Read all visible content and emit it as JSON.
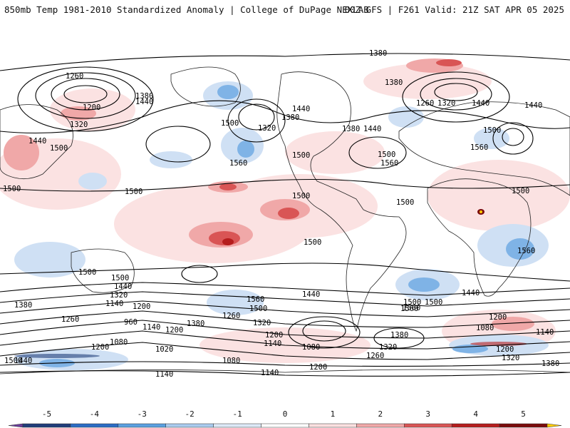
{
  "header": {
    "left": "850mb Temp 1981-2010 Standardized Anomaly | College of DuPage NEXLAB",
    "right": "00Z GFS | F261 Valid: 21Z SAT APR 05 2025"
  },
  "contour_labels": [
    "1380",
    "1260",
    "1200",
    "1320",
    "1380",
    "1440",
    "1440",
    "1500",
    "1500",
    "1500",
    "1500",
    "1560",
    "1380",
    "1320",
    "1440",
    "1500",
    "1380",
    "1440",
    "1500",
    "1560",
    "1500",
    "1560",
    "1500",
    "1500",
    "1380",
    "1260",
    "1320",
    "1440",
    "1440",
    "1500",
    "1560",
    "1500",
    "1500",
    "1500",
    "1500",
    "1560",
    "1440",
    "1500",
    "1440",
    "1320",
    "1140",
    "1200",
    "1380",
    "1260",
    "1140",
    "1200",
    "960",
    "1080",
    "1020",
    "1320",
    "1260",
    "1200",
    "1140",
    "1380",
    "1500",
    "1560",
    "1440",
    "1080",
    "1200",
    "1080",
    "1140",
    "1200",
    "1380",
    "1320",
    "1260",
    "1500",
    "1440",
    "1560",
    "1200",
    "1080",
    "1140",
    "1200",
    "1320",
    "1380",
    "1140"
  ],
  "colorbar": {
    "labels": [
      "-5",
      "-4",
      "-3",
      "-2",
      "-1",
      "0",
      "1",
      "2",
      "3",
      "4",
      "5"
    ],
    "colors": [
      "#6a3d9a",
      "#1f3d7a",
      "#2b6cc4",
      "#5aa0e0",
      "#a9cbee",
      "#dde9f7",
      "#ffffff",
      "#fbe0e0",
      "#f0a8a8",
      "#d95555",
      "#b51d1d",
      "#7a0c0c",
      "#ffcc00"
    ]
  }
}
